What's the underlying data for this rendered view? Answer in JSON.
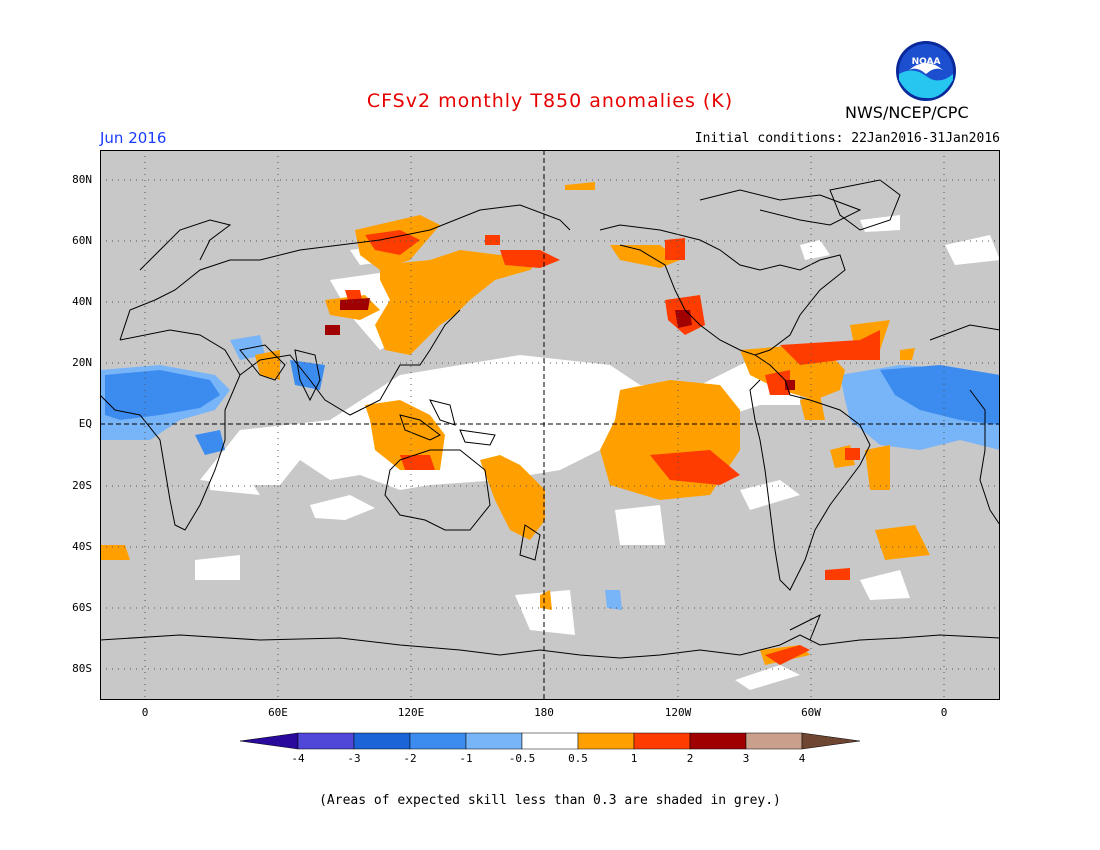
{
  "title": "CFSv2 monthly T850 anomalies (K)",
  "month": "Jun 2016",
  "initial_conditions": "Initial conditions: 22Jan2016-31Jan2016",
  "agency": "NWS/NCEP/CPC",
  "logo_text": "NOAA",
  "footnote": "(Areas of expected skill less than 0.3 are shaded in grey.)",
  "lat_labels": [
    "80N",
    "60N",
    "40N",
    "20N",
    "EQ",
    "20S",
    "40S",
    "60S",
    "80S"
  ],
  "lon_labels": [
    "0",
    "60E",
    "120E",
    "180",
    "120W",
    "60W",
    "0"
  ],
  "colorbar": {
    "ticks": [
      "-4",
      "-3",
      "-2",
      "-1",
      "-0.5",
      "0.5",
      "1",
      "2",
      "3",
      "4"
    ],
    "colors": [
      "#2a0a9c",
      "#5046d8",
      "#1a64d8",
      "#3c8cf0",
      "#78b4f8",
      "#ffffff",
      "#ffa000",
      "#ff3c00",
      "#a00000",
      "#c8a08c",
      "#6e4632"
    ]
  },
  "colors": {
    "skill_grey": "#c8c8c8",
    "title_red": "#e60000",
    "month_blue": "#1a3cff"
  },
  "legend_bins": [
    {
      "range": "< -4",
      "color": "#2a0a9c"
    },
    {
      "range": "-4 to -3",
      "color": "#5046d8"
    },
    {
      "range": "-3 to -2",
      "color": "#1a64d8"
    },
    {
      "range": "-2 to -1",
      "color": "#3c8cf0"
    },
    {
      "range": "-1 to -0.5",
      "color": "#78b4f8"
    },
    {
      "range": "-0.5 to 0.5",
      "color": "#ffffff"
    },
    {
      "range": "0.5 to 1",
      "color": "#ffa000"
    },
    {
      "range": "1 to 2",
      "color": "#ff3c00"
    },
    {
      "range": "2 to 3",
      "color": "#a00000"
    },
    {
      "range": "3 to 4",
      "color": "#c8a08c"
    },
    {
      "range": "> 4",
      "color": "#6e4632"
    }
  ]
}
